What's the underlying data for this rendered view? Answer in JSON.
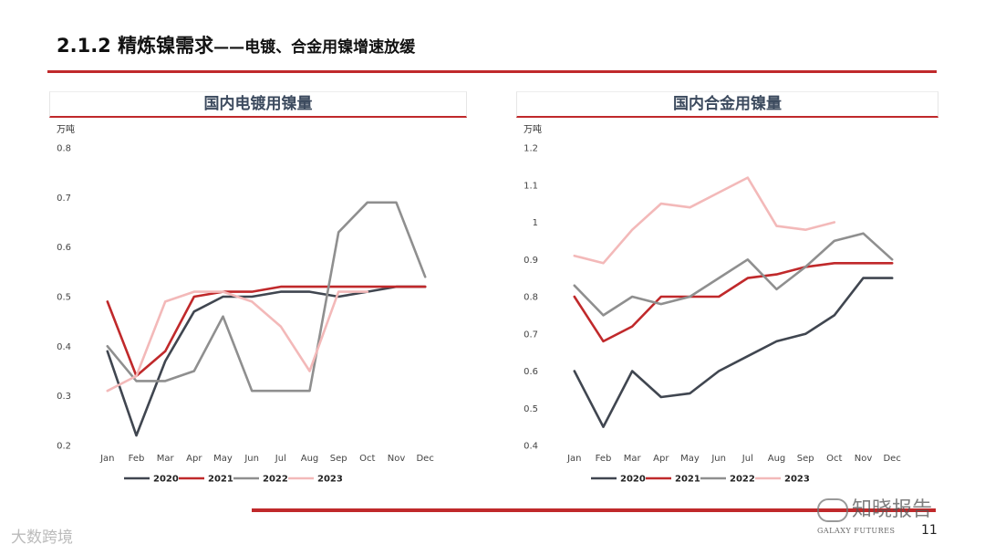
{
  "header": {
    "title_main": "2.1.2 精炼镍需求",
    "title_sub": "——电镀、合金用镍增速放缓"
  },
  "colors": {
    "accent": "#c0292b",
    "series_2020": "#404650",
    "series_2021": "#c0292b",
    "series_2022": "#8f8f8f",
    "series_2023": "#f3b9b9"
  },
  "chart_data": [
    {
      "type": "line",
      "title": "国内电镀用镍量",
      "unit": "万吨",
      "categories": [
        "Jan",
        "Feb",
        "Mar",
        "Apr",
        "May",
        "Jun",
        "Jul",
        "Aug",
        "Sep",
        "Oct",
        "Nov",
        "Dec"
      ],
      "ylim": [
        0.2,
        0.8
      ],
      "yticks": [
        "0.2",
        "0.3",
        "0.4",
        "0.5",
        "0.6",
        "0.7",
        "0.8"
      ],
      "legend_position": "bottom",
      "series": [
        {
          "name": "2020",
          "color": "#404650",
          "values": [
            0.39,
            0.22,
            0.37,
            0.47,
            0.5,
            0.5,
            0.51,
            0.51,
            0.5,
            0.51,
            0.52,
            0.52
          ]
        },
        {
          "name": "2021",
          "color": "#c0292b",
          "values": [
            0.49,
            0.34,
            0.39,
            0.5,
            0.51,
            0.51,
            0.52,
            0.52,
            0.52,
            0.52,
            0.52,
            0.52
          ]
        },
        {
          "name": "2022",
          "color": "#8f8f8f",
          "values": [
            0.4,
            0.33,
            0.33,
            0.35,
            0.46,
            0.31,
            0.31,
            0.31,
            0.63,
            0.69,
            0.69,
            0.54
          ]
        },
        {
          "name": "2023",
          "color": "#f3b9b9",
          "values": [
            0.31,
            0.34,
            0.49,
            0.51,
            0.51,
            0.49,
            0.44,
            0.35,
            0.51,
            0.51,
            null,
            null
          ]
        }
      ]
    },
    {
      "type": "line",
      "title": "国内合金用镍量",
      "unit": "万吨",
      "categories": [
        "Jan",
        "Feb",
        "Mar",
        "Apr",
        "May",
        "Jun",
        "Jul",
        "Aug",
        "Sep",
        "Oct",
        "Nov",
        "Dec"
      ],
      "ylim": [
        0.4,
        1.2
      ],
      "yticks": [
        "0.4",
        "0.5",
        "0.6",
        "0.7",
        "0.8",
        "0.9",
        "1",
        "1.1",
        "1.2"
      ],
      "legend_position": "bottom",
      "series": [
        {
          "name": "2020",
          "color": "#404650",
          "values": [
            0.6,
            0.45,
            0.6,
            0.53,
            0.54,
            0.6,
            0.64,
            0.68,
            0.7,
            0.75,
            0.85,
            0.85
          ]
        },
        {
          "name": "2021",
          "color": "#c0292b",
          "values": [
            0.8,
            0.68,
            0.72,
            0.8,
            0.8,
            0.8,
            0.85,
            0.86,
            0.88,
            0.89,
            0.89,
            0.89
          ]
        },
        {
          "name": "2022",
          "color": "#8f8f8f",
          "values": [
            0.83,
            0.75,
            0.8,
            0.78,
            0.8,
            0.85,
            0.9,
            0.82,
            0.88,
            0.95,
            0.97,
            0.9
          ]
        },
        {
          "name": "2023",
          "color": "#f3b9b9",
          "values": [
            0.91,
            0.89,
            0.98,
            1.05,
            1.04,
            1.08,
            1.12,
            0.99,
            0.98,
            1.0,
            null,
            null
          ]
        }
      ]
    }
  ],
  "watermark_right": "知晓报告",
  "company": "GALAXY FUTURES",
  "page_number": "11",
  "watermark_left": "大数跨境"
}
